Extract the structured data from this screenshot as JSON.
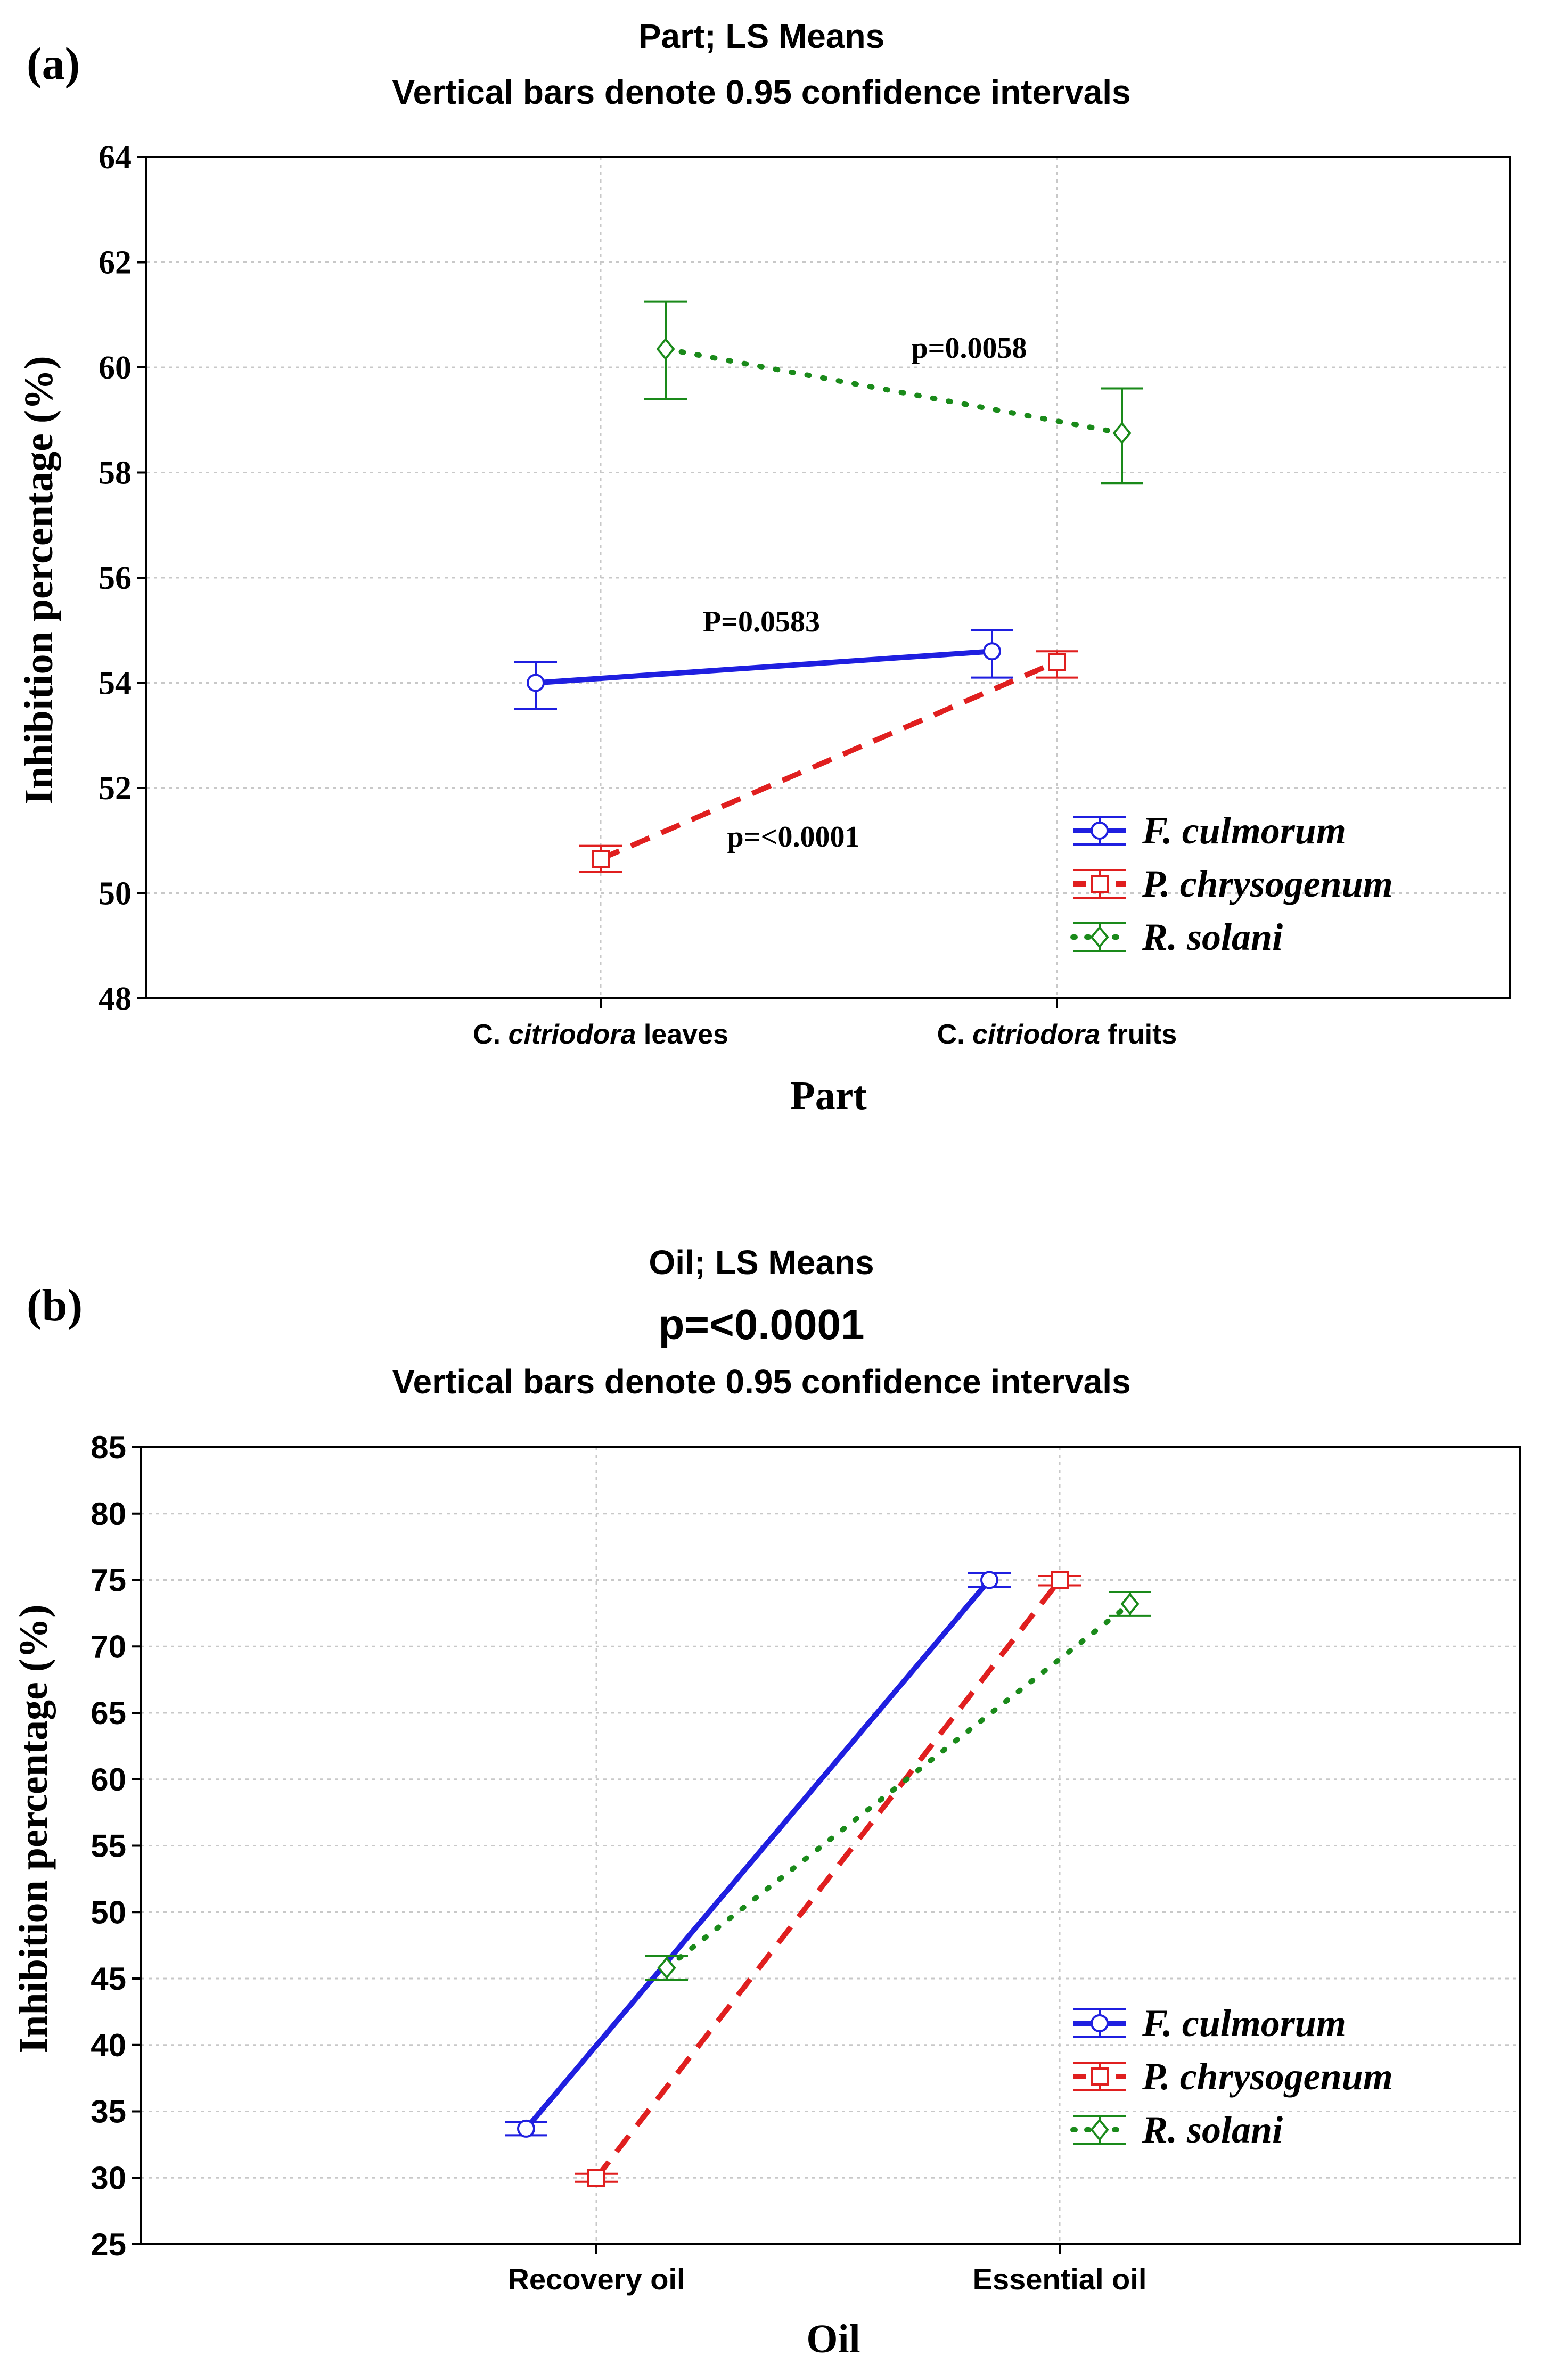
{
  "chart_data": [
    {
      "type": "line",
      "panel_label": "(a)",
      "title": "Part; LS Means",
      "subtitle": "Vertical bars denote 0.95 confidence intervals",
      "xlabel": "Part",
      "ylabel": "Inhibition percentage (%)",
      "ylim": [
        48,
        64
      ],
      "yticks": [
        48,
        50,
        52,
        54,
        56,
        58,
        60,
        62,
        64
      ],
      "grid": true,
      "categories": [
        {
          "prefix": "C.",
          "italic": "citriodora",
          "suffix": " leaves"
        },
        {
          "prefix": "C.",
          "italic": "citriodora",
          "suffix": " fruits"
        }
      ],
      "legend_position": "bottom-right",
      "series": [
        {
          "name": "F. culmorum",
          "color": "#1f1fe0",
          "style": "solid",
          "marker": "circle",
          "values": [
            54.0,
            54.6
          ],
          "ci": [
            [
              53.5,
              54.4
            ],
            [
              54.1,
              55.0
            ]
          ]
        },
        {
          "name": "P. chrysogenum",
          "color": "#e01f1f",
          "style": "dashed",
          "marker": "square",
          "values": [
            50.65,
            54.4
          ],
          "ci": [
            [
              50.4,
              50.9
            ],
            [
              54.1,
              54.6
            ]
          ]
        },
        {
          "name": "R. solani",
          "color": "#1a8a1a",
          "style": "dotted",
          "marker": "diamond",
          "values": [
            60.35,
            58.75
          ],
          "ci": [
            [
              59.4,
              61.25
            ],
            [
              57.8,
              59.6
            ]
          ]
        }
      ],
      "annotations": [
        {
          "text": "p=0.0058",
          "series": "R. solani"
        },
        {
          "text": "P=0.0583",
          "series": "F. culmorum"
        },
        {
          "text": "p=<0.0001",
          "series": "P. chrysogenum"
        }
      ]
    },
    {
      "type": "line",
      "panel_label": "(b)",
      "title": "Oil; LS Means",
      "pvalue": "p=<0.0001",
      "subtitle": "Vertical bars denote 0.95 confidence intervals",
      "xlabel": "Oil",
      "ylabel": "Inhibition percentage (%)",
      "ylim": [
        25,
        85
      ],
      "yticks": [
        25,
        30,
        35,
        40,
        45,
        50,
        55,
        60,
        65,
        70,
        75,
        80,
        85
      ],
      "grid": true,
      "categories": [
        {
          "prefix": "",
          "italic": "",
          "suffix": "Recovery oil"
        },
        {
          "prefix": "",
          "italic": "",
          "suffix": "Essential oil"
        }
      ],
      "legend_position": "bottom-right",
      "series": [
        {
          "name": "F. culmorum",
          "color": "#1f1fe0",
          "style": "solid",
          "marker": "circle",
          "values": [
            33.7,
            75.0
          ],
          "ci": [
            [
              33.2,
              34.2
            ],
            [
              74.5,
              75.5
            ]
          ]
        },
        {
          "name": "P. chrysogenum",
          "color": "#e01f1f",
          "style": "dashed",
          "marker": "square",
          "values": [
            30.0,
            75.0
          ],
          "ci": [
            [
              29.7,
              30.3
            ],
            [
              74.6,
              75.3
            ]
          ]
        },
        {
          "name": "R. solani",
          "color": "#1a8a1a",
          "style": "dotted",
          "marker": "diamond",
          "values": [
            45.8,
            73.2
          ],
          "ci": [
            [
              44.9,
              46.7
            ],
            [
              72.3,
              74.1
            ]
          ]
        }
      ]
    }
  ]
}
